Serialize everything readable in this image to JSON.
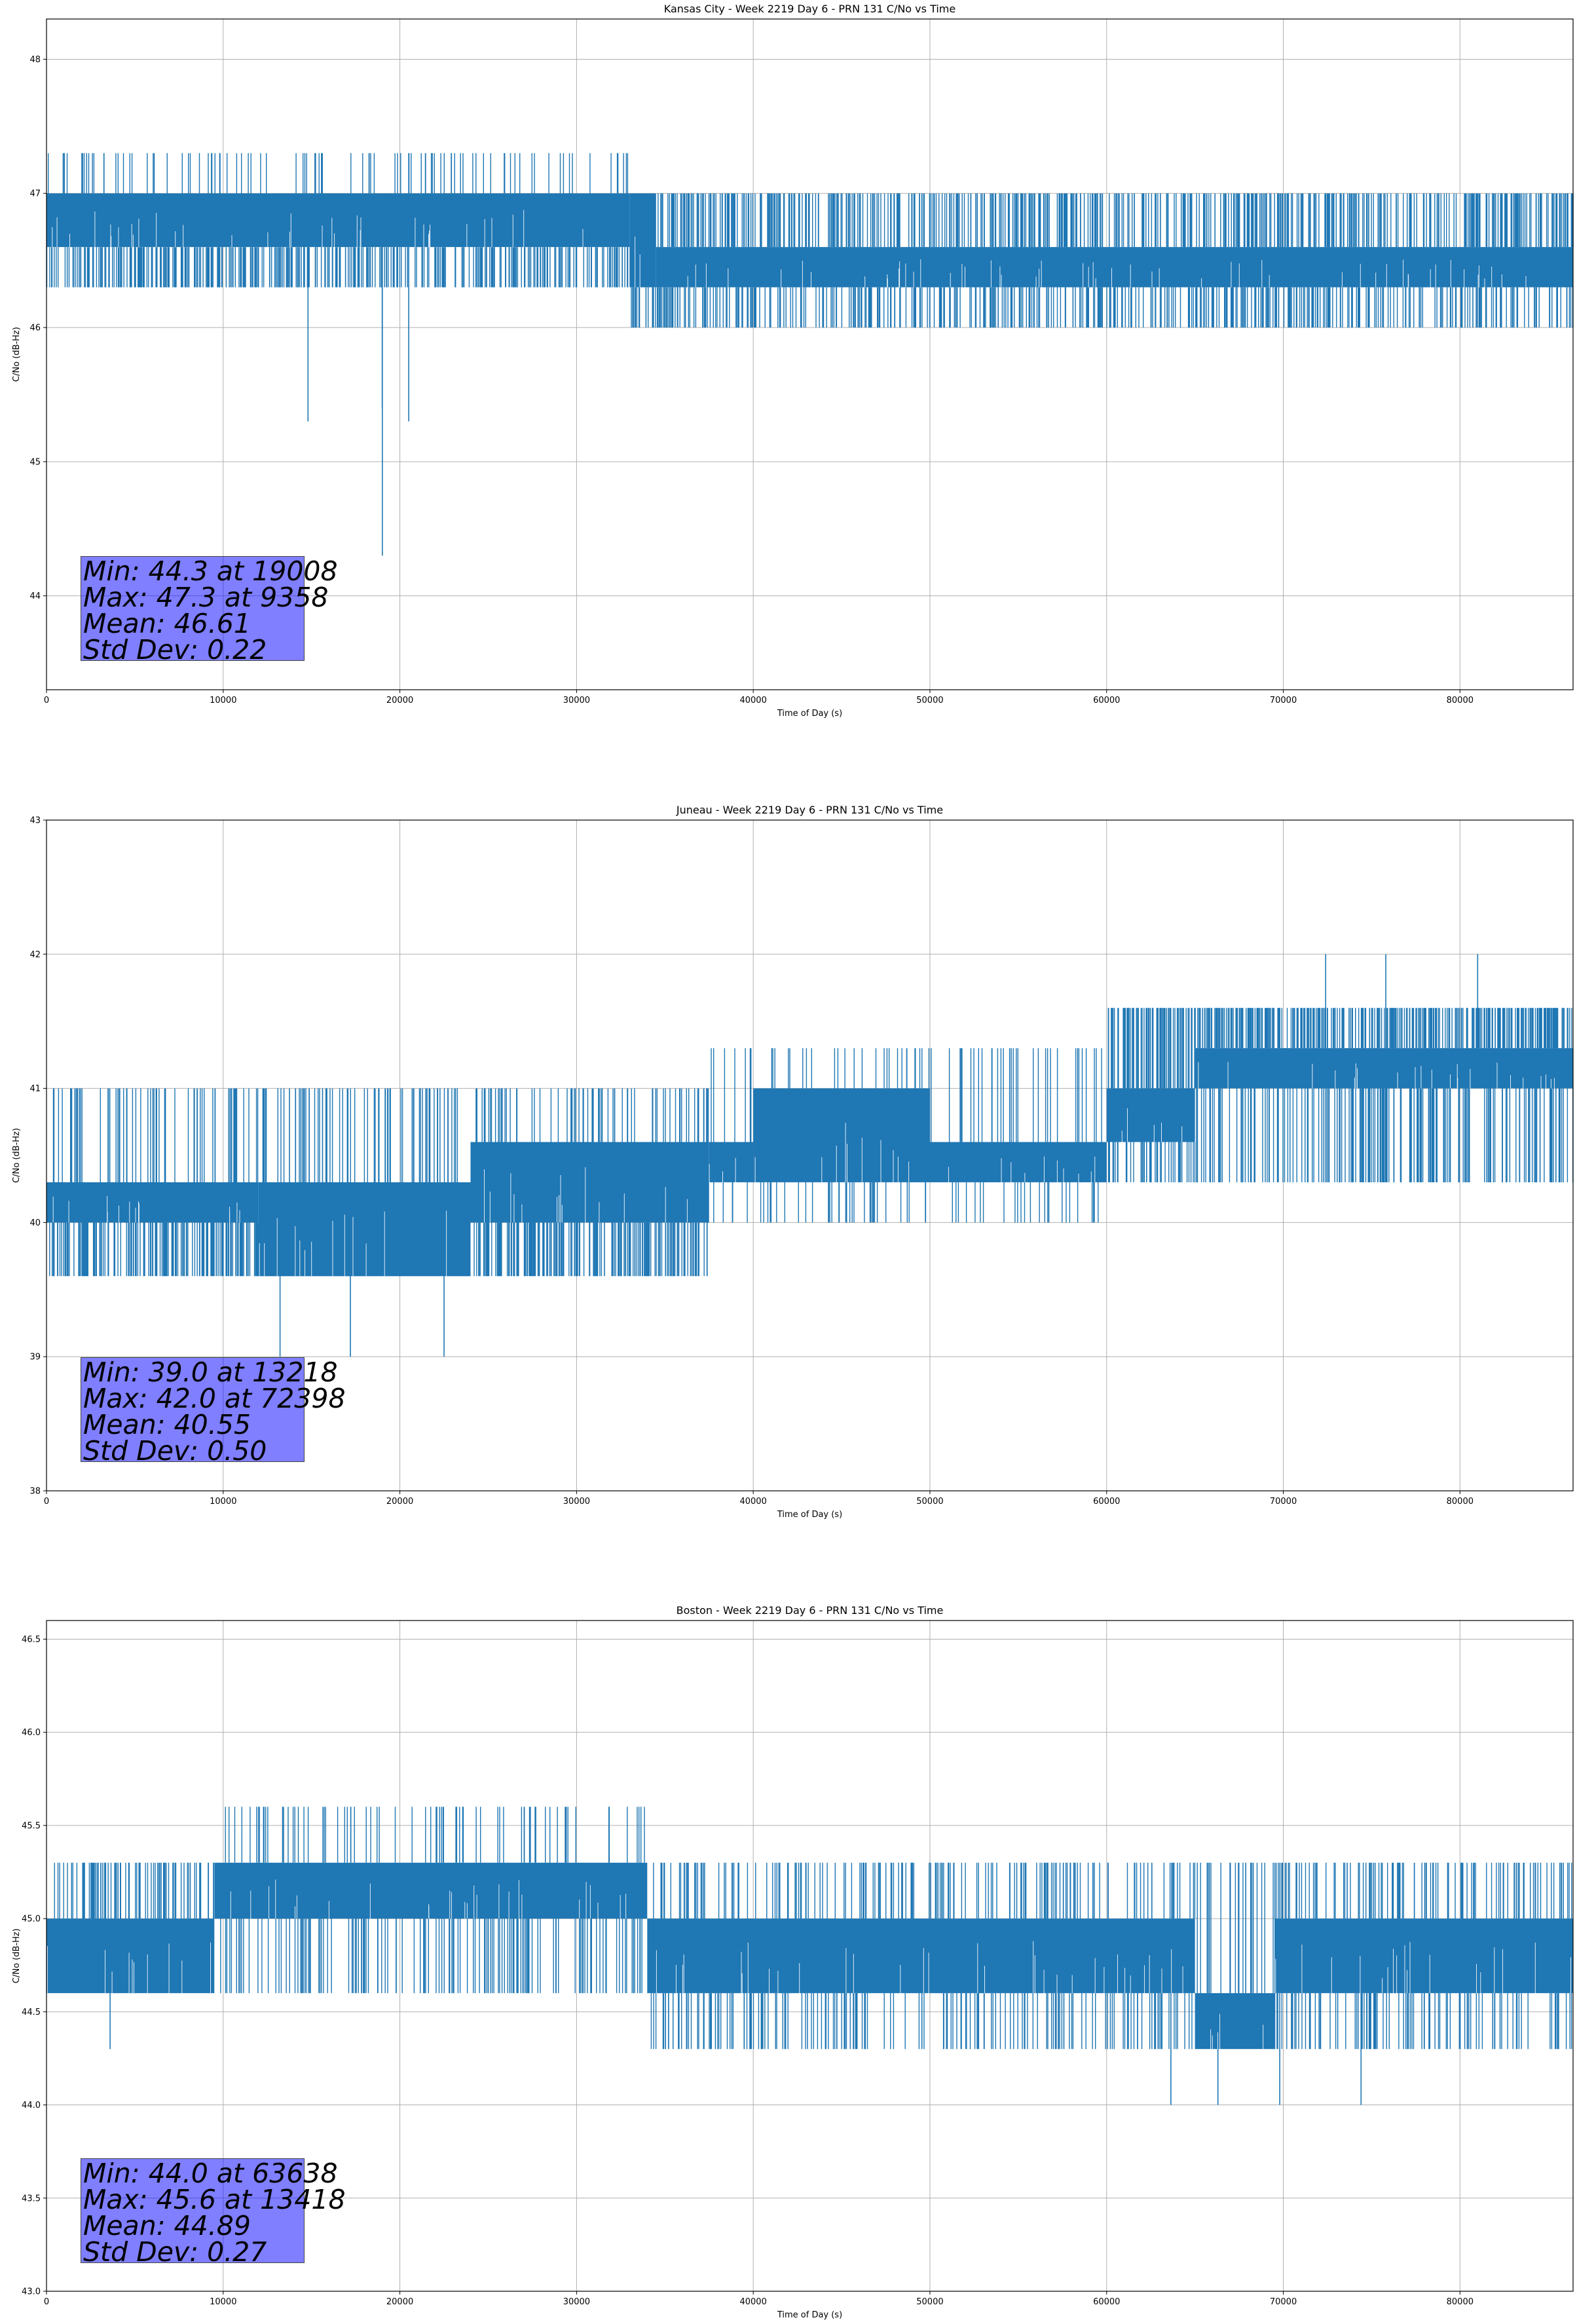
{
  "chart_data": [
    {
      "type": "line",
      "title": "Kansas City - Week 2219 Day 6 - PRN 131 C/No vs Time",
      "xlabel": "Time of Day (s)",
      "ylabel": "C/No (dB-Hz)",
      "xlim": [
        0,
        86400
      ],
      "ylim": [
        43.3,
        48.3
      ],
      "xticks": [
        0,
        10000,
        20000,
        30000,
        40000,
        50000,
        60000,
        70000,
        80000
      ],
      "yticks": [
        44,
        45,
        46,
        47,
        48
      ],
      "ytick_labels": [
        "44",
        "45",
        "46",
        "47",
        "48"
      ],
      "grid": true,
      "line_color": "#1f77b4",
      "band_segments": [
        {
          "x0": 0,
          "x1": 33000,
          "low": 46.6,
          "high": 47.0
        },
        {
          "x0": 33000,
          "x1": 34500,
          "low": 46.3,
          "high": 47.0
        },
        {
          "x0": 34500,
          "x1": 86400,
          "low": 46.3,
          "high": 46.6
        }
      ],
      "noise": {
        "up": [
          [
            0,
            33000,
            47.3,
            0.01
          ],
          [
            33000,
            86400,
            47.0,
            0.04
          ]
        ],
        "down": [
          [
            0,
            33000,
            46.3,
            0.04
          ],
          [
            33000,
            86400,
            46.0,
            0.03
          ]
        ]
      },
      "extremes": [
        {
          "x": 19008,
          "y": 44.3
        },
        {
          "x": 9358,
          "y": 47.3
        },
        {
          "x": 14800,
          "y": 45.3
        },
        {
          "x": 20500,
          "y": 45.3
        },
        {
          "x": 19000,
          "y": 45.4
        }
      ],
      "stats": {
        "min": "Min: 44.3 at 19008",
        "max": "Max: 47.3 at 9358",
        "mean": "Mean: 46.61",
        "std": "Std Dev: 0.22"
      }
    },
    {
      "type": "line",
      "title": "Juneau - Week 2219 Day 6 - PRN 131 C/No vs Time",
      "xlabel": "Time of Day (s)",
      "ylabel": "C/No (dB-Hz)",
      "xlim": [
        0,
        86400
      ],
      "ylim": [
        38.0,
        43.0
      ],
      "xticks": [
        0,
        10000,
        20000,
        30000,
        40000,
        50000,
        60000,
        70000,
        80000
      ],
      "yticks": [
        38,
        39,
        40,
        41,
        42,
        43
      ],
      "ytick_labels": [
        "38",
        "39",
        "40",
        "41",
        "42",
        "43"
      ],
      "grid": true,
      "line_color": "#1f77b4",
      "band_segments": [
        {
          "x0": 0,
          "x1": 12000,
          "low": 40.0,
          "high": 40.3
        },
        {
          "x0": 12000,
          "x1": 24000,
          "low": 39.6,
          "high": 40.3
        },
        {
          "x0": 24000,
          "x1": 37500,
          "low": 40.0,
          "high": 40.6
        },
        {
          "x0": 37500,
          "x1": 40000,
          "low": 40.3,
          "high": 40.6
        },
        {
          "x0": 40000,
          "x1": 50000,
          "low": 40.3,
          "high": 41.0
        },
        {
          "x0": 50000,
          "x1": 60000,
          "low": 40.3,
          "high": 40.6
        },
        {
          "x0": 60000,
          "x1": 65000,
          "low": 40.6,
          "high": 41.0
        },
        {
          "x0": 65000,
          "x1": 86400,
          "low": 41.0,
          "high": 41.3
        }
      ],
      "noise": {
        "up": [
          [
            0,
            37500,
            41.0,
            0.02
          ],
          [
            37500,
            60000,
            41.3,
            0.01
          ],
          [
            60000,
            86400,
            41.6,
            0.06
          ]
        ],
        "down": [
          [
            0,
            37500,
            39.6,
            0.05
          ],
          [
            37500,
            60000,
            40.0,
            0.01
          ],
          [
            60000,
            86400,
            40.3,
            0.03
          ]
        ]
      },
      "extremes": [
        {
          "x": 13218,
          "y": 39.0
        },
        {
          "x": 72398,
          "y": 42.0
        },
        {
          "x": 75800,
          "y": 42.0
        },
        {
          "x": 81000,
          "y": 42.0
        },
        {
          "x": 17200,
          "y": 39.0
        },
        {
          "x": 22500,
          "y": 39.0
        }
      ],
      "stats": {
        "min": "Min: 39.0 at 13218",
        "max": "Max: 42.0 at 72398",
        "mean": "Mean: 40.55",
        "std": "Std Dev: 0.50"
      }
    },
    {
      "type": "line",
      "title": "Boston - Week 2219 Day 6 - PRN 131 C/No vs Time",
      "xlabel": "Time of Day (s)",
      "ylabel": "C/No (dB-Hz)",
      "xlim": [
        0,
        86400
      ],
      "ylim": [
        43.0,
        46.6
      ],
      "xticks": [
        0,
        10000,
        20000,
        30000,
        40000,
        50000,
        60000,
        70000,
        80000
      ],
      "yticks": [
        43.0,
        43.5,
        44.0,
        44.5,
        45.0,
        45.5,
        46.0,
        46.5
      ],
      "ytick_labels": [
        "43.0",
        "43.5",
        "44.0",
        "44.5",
        "45.0",
        "45.5",
        "46.0",
        "46.5"
      ],
      "grid": true,
      "line_color": "#1f77b4",
      "band_segments": [
        {
          "x0": 0,
          "x1": 9500,
          "low": 44.6,
          "high": 45.0
        },
        {
          "x0": 9500,
          "x1": 34000,
          "low": 45.0,
          "high": 45.3
        },
        {
          "x0": 34000,
          "x1": 65000,
          "low": 44.6,
          "high": 45.0
        },
        {
          "x0": 65000,
          "x1": 69500,
          "low": 44.3,
          "high": 44.6
        },
        {
          "x0": 69500,
          "x1": 86400,
          "low": 44.6,
          "high": 45.0
        }
      ],
      "noise": {
        "up": [
          [
            0,
            9500,
            45.3,
            0.03
          ],
          [
            9500,
            34000,
            45.6,
            0.01
          ],
          [
            34000,
            86400,
            45.3,
            0.02
          ]
        ],
        "down": [
          [
            0,
            9500,
            44.6,
            0.01
          ],
          [
            9500,
            34000,
            44.6,
            0.02
          ],
          [
            34000,
            86400,
            44.3,
            0.02
          ]
        ]
      },
      "extremes": [
        {
          "x": 63638,
          "y": 44.0
        },
        {
          "x": 13418,
          "y": 45.6
        },
        {
          "x": 66300,
          "y": 44.0
        },
        {
          "x": 69800,
          "y": 44.0
        },
        {
          "x": 74400,
          "y": 44.0
        },
        {
          "x": 3600,
          "y": 44.3
        }
      ],
      "stats": {
        "min": "Min: 44.0 at 63638",
        "max": "Max: 45.6 at 13418",
        "mean": "Mean: 44.89",
        "std": "Std Dev: 0.27"
      }
    }
  ]
}
